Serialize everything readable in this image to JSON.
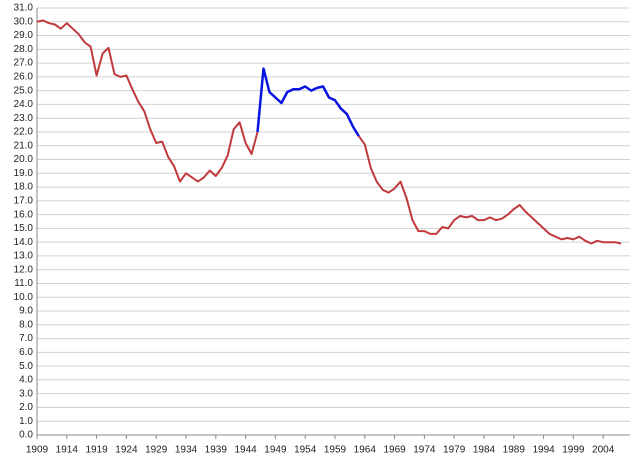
{
  "chart_data": {
    "type": "line",
    "x": [
      1909,
      1910,
      1911,
      1912,
      1913,
      1914,
      1915,
      1916,
      1917,
      1918,
      1919,
      1920,
      1921,
      1922,
      1923,
      1924,
      1925,
      1926,
      1927,
      1928,
      1929,
      1930,
      1931,
      1932,
      1933,
      1934,
      1935,
      1936,
      1937,
      1938,
      1939,
      1940,
      1941,
      1942,
      1943,
      1944,
      1945,
      1946,
      1947,
      1948,
      1949,
      1950,
      1951,
      1952,
      1953,
      1954,
      1955,
      1956,
      1957,
      1958,
      1959,
      1960,
      1961,
      1962,
      1963,
      1964,
      1965,
      1966,
      1967,
      1968,
      1969,
      1970,
      1971,
      1972,
      1973,
      1974,
      1975,
      1976,
      1977,
      1978,
      1979,
      1980,
      1981,
      1982,
      1983,
      1984,
      1985,
      1986,
      1987,
      1988,
      1989,
      1990,
      1991,
      1992,
      1993,
      1994,
      1995,
      1996,
      1997,
      1998,
      1999,
      2000,
      2001,
      2002,
      2003,
      2004,
      2005,
      2006,
      2007
    ],
    "series": [
      {
        "color": "#c0393b",
        "values": [
          30.0,
          30.1,
          29.9,
          29.8,
          29.5,
          29.9,
          29.5,
          29.1,
          28.5,
          28.2,
          26.1,
          27.7,
          28.1,
          26.2,
          26.0,
          26.1,
          25.1,
          24.2,
          23.5,
          22.2,
          21.2,
          21.3,
          20.2,
          19.5,
          18.4,
          19.0,
          18.7,
          18.4,
          18.7,
          19.2,
          18.8,
          19.4,
          20.3,
          22.2,
          22.7,
          21.2,
          20.4,
          22.0,
          null,
          null,
          null,
          null,
          null,
          null,
          null,
          null,
          null,
          null,
          null,
          null,
          null,
          null,
          null,
          null,
          21.7,
          21.1,
          19.4,
          18.4,
          17.8,
          17.6,
          17.9,
          18.4,
          17.2,
          15.6,
          14.8,
          14.8,
          14.6,
          14.6,
          15.1,
          15.0,
          15.6,
          15.9,
          15.8,
          15.9,
          15.6,
          15.6,
          15.8,
          15.6,
          15.7,
          16.0,
          16.4,
          16.7,
          16.2,
          15.8,
          15.4,
          15.0,
          14.6,
          14.4,
          14.2,
          14.3,
          14.2,
          14.4,
          14.1,
          13.9,
          14.1,
          14.0,
          14.0,
          14.0,
          13.9
        ]
      },
      {
        "color": "#0a14e0",
        "values": [
          null,
          null,
          null,
          null,
          null,
          null,
          null,
          null,
          null,
          null,
          null,
          null,
          null,
          null,
          null,
          null,
          null,
          null,
          null,
          null,
          null,
          null,
          null,
          null,
          null,
          null,
          null,
          null,
          null,
          null,
          null,
          null,
          null,
          null,
          null,
          null,
          null,
          22.0,
          26.6,
          24.9,
          24.5,
          24.1,
          24.9,
          25.1,
          25.1,
          25.3,
          25.0,
          25.2,
          25.3,
          24.5,
          24.3,
          23.7,
          23.3,
          22.4,
          21.7,
          null,
          null,
          null,
          null,
          null,
          null,
          null,
          null,
          null,
          null,
          null,
          null,
          null,
          null,
          null,
          null,
          null,
          null,
          null,
          null,
          null,
          null,
          null,
          null,
          null,
          null,
          null,
          null,
          null,
          null,
          null,
          null,
          null,
          null,
          null,
          null,
          null,
          null,
          null,
          null,
          null,
          null,
          null,
          null
        ]
      }
    ],
    "xlim": [
      1909,
      2008.5
    ],
    "xticks": [
      1909,
      1914,
      1919,
      1924,
      1929,
      1934,
      1939,
      1944,
      1949,
      1954,
      1959,
      1964,
      1969,
      1974,
      1979,
      1984,
      1989,
      1994,
      1999,
      2004
    ],
    "ylim": [
      0,
      31
    ],
    "yticks": [
      {
        "value": 0,
        "label": "0.0"
      },
      {
        "value": 1,
        "label": "1.0"
      },
      {
        "value": 2,
        "label": "2.0"
      },
      {
        "value": 3,
        "label": "3.0"
      },
      {
        "value": 4,
        "label": "4.0"
      },
      {
        "value": 5,
        "label": "5.0"
      },
      {
        "value": 6,
        "label": "6.0"
      },
      {
        "value": 7,
        "label": "7.0"
      },
      {
        "value": 8,
        "label": "8.0"
      },
      {
        "value": 9,
        "label": "9.0"
      },
      {
        "value": 10,
        "label": "10.0"
      },
      {
        "value": 11,
        "label": "11.0"
      },
      {
        "value": 12,
        "label": "12.0"
      },
      {
        "value": 13,
        "label": "13.0"
      },
      {
        "value": 14,
        "label": "14.0"
      },
      {
        "value": 15,
        "label": "15.0"
      },
      {
        "value": 16,
        "label": "16.0"
      },
      {
        "value": 17,
        "label": "17.0"
      },
      {
        "value": 18,
        "label": "18.0"
      },
      {
        "value": 19,
        "label": "19.0"
      },
      {
        "value": 20,
        "label": "20.0"
      },
      {
        "value": 21,
        "label": "21.0"
      },
      {
        "value": 22,
        "label": "22.0"
      },
      {
        "value": 23,
        "label": "23.0"
      },
      {
        "value": 24,
        "label": "24.0"
      },
      {
        "value": 25,
        "label": "25.0"
      },
      {
        "value": 26,
        "label": "26.0"
      },
      {
        "value": 27,
        "label": "27.0"
      },
      {
        "value": 28,
        "label": "28.0"
      },
      {
        "value": 29,
        "label": "29.0"
      },
      {
        "value": 30,
        "label": "30.0"
      },
      {
        "value": 31,
        "label": "31.0"
      }
    ],
    "grid": true
  }
}
